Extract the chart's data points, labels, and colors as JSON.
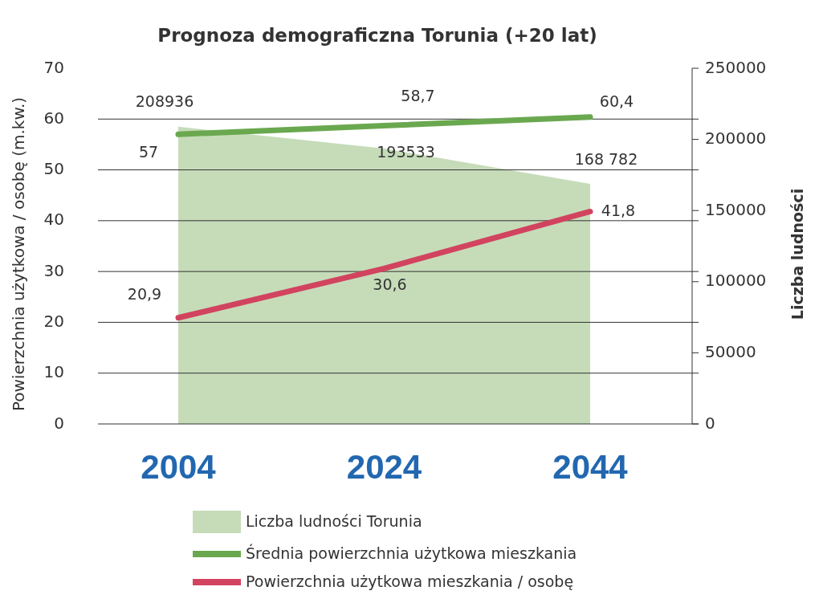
{
  "chart_data": {
    "type": "line",
    "title": "Prognoza demograficzna Torunia (+20 lat)",
    "ylabel": "Powierzchnia użytkowa / osobę (m.kw.)",
    "y2label": "Liczba ludności",
    "categories": [
      "2004",
      "2024",
      "2044"
    ],
    "series": [
      {
        "name": "Liczba ludności Torunia",
        "type": "area",
        "axis": "y2",
        "color": "#c6dcb9",
        "values": [
          208936,
          193533,
          168782
        ],
        "value_labels": [
          "208936",
          "193533",
          "168 782"
        ]
      },
      {
        "name": "Średnia powierzchnia użytkowa mieszkania",
        "color": "#6aa84f",
        "values": [
          57,
          58.7,
          60.4
        ],
        "value_labels": [
          "57",
          "58,7",
          "60,4"
        ]
      },
      {
        "name": "Powierzchnia użytkowa mieszkania / osobę",
        "color": "#d2435f",
        "values": [
          20.9,
          30.6,
          41.8
        ],
        "value_labels": [
          "20,9",
          "30,6",
          "41,8"
        ]
      }
    ],
    "ylim": [
      0,
      70
    ],
    "yticks": [
      0,
      10,
      20,
      30,
      40,
      50,
      60,
      70
    ],
    "y2lim": [
      0,
      250000
    ],
    "y2ticks": [
      0,
      50000,
      100000,
      150000,
      200000,
      250000
    ],
    "grid": "y",
    "legend": "bottom",
    "marker": "none",
    "line_style": "solid"
  }
}
